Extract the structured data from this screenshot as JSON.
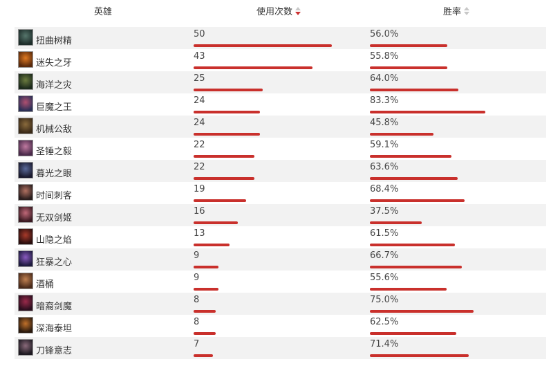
{
  "header": {
    "hero": "英雄",
    "uses": "使用次数",
    "win_rate": "胜率"
  },
  "colors": {
    "bar": "#c9302c",
    "sort_active": "#cc3333",
    "sort_inactive": "#c8c8c8",
    "row_alt_bg": "#f2f2f2"
  },
  "rows": [
    {
      "name": "扭曲树精",
      "uses": "50",
      "win": "56.0%",
      "uses_level": 1.0,
      "win_level": 0.56,
      "icon": "maokai-portrait",
      "tones": [
        "#1e2d2a",
        "#56766c"
      ]
    },
    {
      "name": "迷失之牙",
      "uses": "43",
      "win": "55.8%",
      "uses_level": 0.86,
      "win_level": 0.558,
      "icon": "gnar-portrait",
      "tones": [
        "#5a2a0c",
        "#e07a22"
      ]
    },
    {
      "name": "海洋之灾",
      "uses": "25",
      "win": "64.0%",
      "uses_level": 0.5,
      "win_level": 0.64,
      "icon": "gangplank-portrait",
      "tones": [
        "#1c2a1c",
        "#6b7b3e"
      ]
    },
    {
      "name": "巨魔之王",
      "uses": "24",
      "win": "83.3%",
      "uses_level": 0.48,
      "win_level": 0.833,
      "icon": "trundle-portrait",
      "tones": [
        "#2b2f56",
        "#b05070"
      ]
    },
    {
      "name": "机械公敌",
      "uses": "24",
      "win": "45.8%",
      "uses_level": 0.48,
      "win_level": 0.458,
      "icon": "rumble-portrait",
      "tones": [
        "#3a2a18",
        "#8a6a3c"
      ]
    },
    {
      "name": "圣锤之毅",
      "uses": "22",
      "win": "59.1%",
      "uses_level": 0.44,
      "win_level": 0.591,
      "icon": "poppy-portrait",
      "tones": [
        "#4a2a4a",
        "#c07aa0"
      ]
    },
    {
      "name": "暮光之眼",
      "uses": "22",
      "win": "63.6%",
      "uses_level": 0.44,
      "win_level": 0.636,
      "icon": "shen-portrait",
      "tones": [
        "#1a1a2e",
        "#5a6a9a"
      ]
    },
    {
      "name": "时间刺客",
      "uses": "19",
      "win": "68.4%",
      "uses_level": 0.38,
      "win_level": 0.684,
      "icon": "ekko-portrait",
      "tones": [
        "#2a1e1e",
        "#b07060"
      ]
    },
    {
      "name": "无双剑姬",
      "uses": "16",
      "win": "37.5%",
      "uses_level": 0.32,
      "win_level": 0.375,
      "icon": "fiora-portrait",
      "tones": [
        "#3a1a22",
        "#c06878"
      ]
    },
    {
      "name": "山隐之焰",
      "uses": "13",
      "win": "61.5%",
      "uses_level": 0.26,
      "win_level": 0.615,
      "icon": "ornn-portrait",
      "tones": [
        "#2a0e0e",
        "#a83a2a"
      ]
    },
    {
      "name": "狂暴之心",
      "uses": "9",
      "win": "66.7%",
      "uses_level": 0.18,
      "win_level": 0.667,
      "icon": "kennen-portrait",
      "tones": [
        "#1e1a3e",
        "#8a5ac0"
      ]
    },
    {
      "name": "酒桶",
      "uses": "9",
      "win": "55.6%",
      "uses_level": 0.18,
      "win_level": 0.556,
      "icon": "gragas-portrait",
      "tones": [
        "#4a2a1a",
        "#c08050"
      ]
    },
    {
      "name": "暗裔剑魔",
      "uses": "8",
      "win": "75.0%",
      "uses_level": 0.16,
      "win_level": 0.75,
      "icon": "aatrox-portrait",
      "tones": [
        "#2a0e1e",
        "#9a2a4a"
      ]
    },
    {
      "name": "深海泰坦",
      "uses": "8",
      "win": "62.5%",
      "uses_level": 0.16,
      "win_level": 0.625,
      "icon": "nautilus-portrait",
      "tones": [
        "#2a1a0e",
        "#c0702a"
      ]
    },
    {
      "name": "刀锋意志",
      "uses": "7",
      "win": "71.4%",
      "uses_level": 0.14,
      "win_level": 0.714,
      "icon": "irelia-portrait",
      "tones": [
        "#1e1a22",
        "#8a6a7a"
      ]
    }
  ]
}
